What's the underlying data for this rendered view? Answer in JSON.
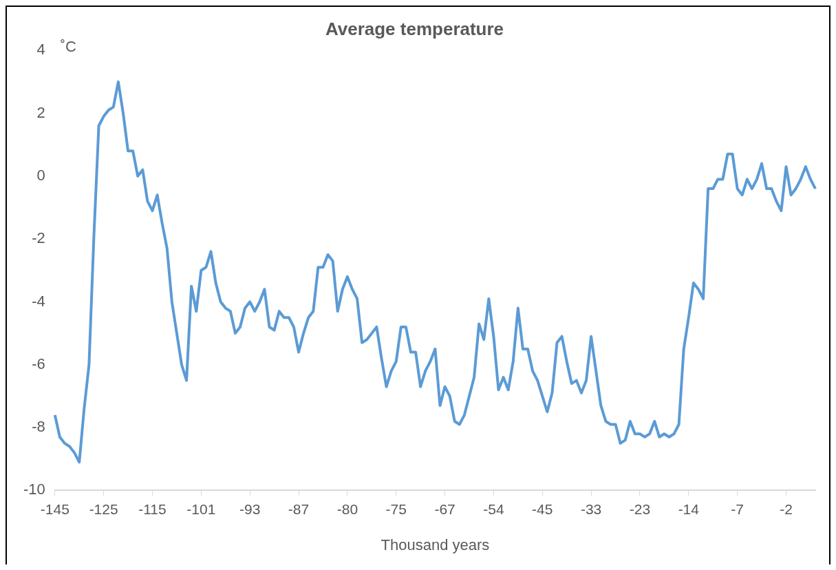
{
  "chart_data": {
    "type": "line",
    "title": "Average temperature",
    "xlabel": "Thousand years",
    "ylabel": "˚C",
    "categories": [
      "-145",
      null,
      null,
      null,
      null,
      null,
      null,
      null,
      null,
      null,
      "-125",
      null,
      null,
      null,
      null,
      null,
      null,
      null,
      null,
      null,
      "-115",
      null,
      null,
      null,
      null,
      null,
      null,
      null,
      null,
      null,
      "-101",
      null,
      null,
      null,
      null,
      null,
      null,
      null,
      null,
      null,
      "-93",
      null,
      null,
      null,
      null,
      null,
      null,
      null,
      null,
      null,
      "-87",
      null,
      null,
      null,
      null,
      null,
      null,
      null,
      null,
      null,
      "-80",
      null,
      null,
      null,
      null,
      null,
      null,
      null,
      null,
      null,
      "-75",
      null,
      null,
      null,
      null,
      null,
      null,
      null,
      null,
      null,
      "-67",
      null,
      null,
      null,
      null,
      null,
      null,
      null,
      null,
      null,
      "-54",
      null,
      null,
      null,
      null,
      null,
      null,
      null,
      null,
      null,
      "-45",
      null,
      null,
      null,
      null,
      null,
      null,
      null,
      null,
      null,
      "-33",
      null,
      null,
      null,
      null,
      null,
      null,
      null,
      null,
      null,
      "-23",
      null,
      null,
      null,
      null,
      null,
      null,
      null,
      null,
      null,
      "-14",
      null,
      null,
      null,
      null,
      null,
      null,
      null,
      null,
      null,
      "-7",
      null,
      null,
      null,
      null,
      null,
      null,
      null,
      null,
      null,
      "-2",
      null,
      null,
      null,
      null,
      null,
      null
    ],
    "series": [
      {
        "color": "#5b9bd5",
        "values": [
          -7.6,
          -8.3,
          -8.5,
          -8.6,
          -8.8,
          -9.1,
          -7.4,
          -6.0,
          -1.9,
          1.6,
          1.9,
          2.1,
          2.2,
          3.0,
          2.0,
          0.8,
          0.8,
          0.0,
          0.2,
          -0.8,
          -1.1,
          -0.6,
          -1.5,
          -2.3,
          -4.0,
          -5.0,
          -6.0,
          -6.5,
          -3.5,
          -4.3,
          -3.0,
          -2.9,
          -2.4,
          -3.4,
          -4.0,
          -4.2,
          -4.3,
          -5.0,
          -4.8,
          -4.2,
          -4.0,
          -4.3,
          -4.0,
          -3.6,
          -4.8,
          -4.9,
          -4.3,
          -4.5,
          -4.5,
          -4.8,
          -5.6,
          -5.0,
          -4.5,
          -4.3,
          -2.9,
          -2.9,
          -2.5,
          -2.7,
          -4.3,
          -3.6,
          -3.2,
          -3.6,
          -3.9,
          -5.3,
          -5.2,
          -5.0,
          -4.8,
          -5.8,
          -6.7,
          -6.2,
          -5.9,
          -4.8,
          -4.8,
          -5.6,
          -5.6,
          -6.7,
          -6.2,
          -5.9,
          -5.5,
          -7.3,
          -6.7,
          -7.0,
          -7.8,
          -7.9,
          -7.6,
          -7.0,
          -6.4,
          -4.7,
          -5.2,
          -3.9,
          -5.1,
          -6.8,
          -6.4,
          -6.8,
          -5.9,
          -4.2,
          -5.5,
          -5.5,
          -6.2,
          -6.5,
          -7.0,
          -7.5,
          -6.9,
          -5.3,
          -5.1,
          -5.9,
          -6.6,
          -6.5,
          -6.9,
          -6.5,
          -5.1,
          -6.2,
          -7.3,
          -7.8,
          -7.9,
          -7.9,
          -8.5,
          -8.4,
          -7.8,
          -8.2,
          -8.2,
          -8.3,
          -8.2,
          -7.8,
          -8.3,
          -8.2,
          -8.3,
          -8.2,
          -7.9,
          -5.5,
          -4.5,
          -3.4,
          -3.6,
          -3.9,
          -0.4,
          -0.4,
          -0.1,
          -0.1,
          0.7,
          0.7,
          -0.4,
          -0.6,
          -0.1,
          -0.4,
          -0.1,
          0.4,
          -0.4,
          -0.4,
          -0.8,
          -1.1,
          0.3,
          -0.6,
          -0.4,
          -0.1,
          0.3,
          -0.1,
          -0.4
        ]
      }
    ],
    "ylim": [
      -10,
      4
    ],
    "yticks": [
      -10,
      -8,
      -6,
      -4,
      -2,
      0,
      2,
      4
    ],
    "grid": false,
    "legend": false,
    "marker": "none",
    "line_style": "solid"
  }
}
